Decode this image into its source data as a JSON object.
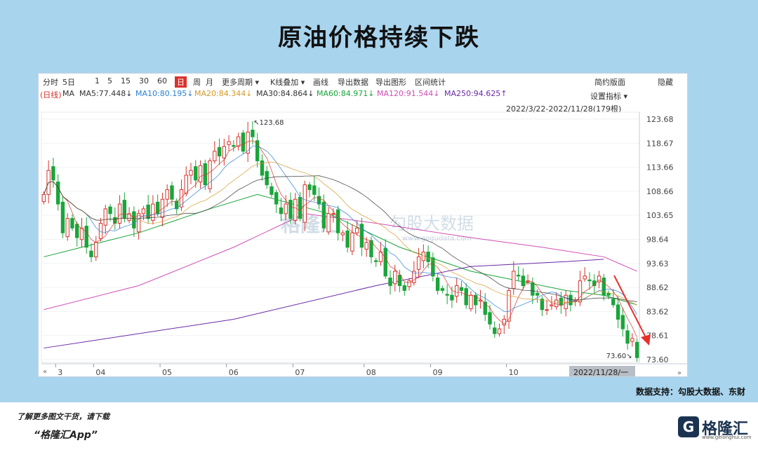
{
  "title": "原油价格持续下跌",
  "toolbar": {
    "items": [
      "分时",
      "5日",
      "1",
      "5",
      "15",
      "30",
      "60",
      "日",
      "周",
      "月",
      "更多周期 ▾",
      "K线叠加 ▾",
      "画线",
      "导出数据",
      "导出图形",
      "区间统计"
    ],
    "selected": "日",
    "right_items": [
      "简约版面",
      "隐藏"
    ],
    "indicator_label": "设置指标 ▾"
  },
  "ma_legend": [
    {
      "text": "(日线)",
      "color": "#d8332c"
    },
    {
      "text": "MA",
      "color": "#333333"
    },
    {
      "text": "MA5:77.448↓",
      "color": "#333333"
    },
    {
      "text": "MA10:80.195↓",
      "color": "#2a7fd4"
    },
    {
      "text": "MA20:84.344↓",
      "color": "#d49a2a"
    },
    {
      "text": "MA30:84.864↓",
      "color": "#333333"
    },
    {
      "text": "MA60:84.971↓",
      "color": "#1aa53a"
    },
    {
      "text": "MA120:91.544↓",
      "color": "#d04fb4"
    },
    {
      "text": "MA250:94.625↑",
      "color": "#6a2aa8"
    }
  ],
  "date_range": "2022/3/22-2022/11/28(179根)",
  "watermark": {
    "main": "格隆汇",
    "secondary": "勾股大数据",
    "url": "www.gogudata.com"
  },
  "chart_data": {
    "type": "candlestick",
    "title": "原油价格持续下跌",
    "y_ticks": [
      123.68,
      118.67,
      113.66,
      108.66,
      103.65,
      98.64,
      93.63,
      88.62,
      83.62,
      78.61,
      73.6
    ],
    "ylim": [
      73.6,
      123.68
    ],
    "x_ticks": [
      "3",
      "04",
      "05",
      "06",
      "07",
      "08",
      "09",
      "10"
    ],
    "x_tick_positions": [
      2.5,
      10.5,
      24.5,
      38.5,
      52.5,
      67.5,
      81.5,
      97.5
    ],
    "last_date_label": "2022/11/28/一",
    "annotations": [
      {
        "label": "123.68",
        "type": "max"
      },
      {
        "label": "73.60",
        "type": "min"
      }
    ],
    "closes": [
      108,
      113,
      111,
      106,
      100,
      103,
      101,
      99,
      101,
      97,
      95,
      98,
      102,
      105,
      104,
      102,
      106,
      103,
      104,
      101,
      104,
      105,
      103,
      106,
      104,
      107,
      109,
      107,
      105,
      109,
      112,
      113,
      111,
      114,
      110,
      115,
      117,
      116,
      118,
      119,
      118,
      120,
      117,
      121,
      120,
      115,
      112,
      110,
      108,
      106,
      104,
      106,
      103,
      107,
      103,
      110,
      109,
      108,
      106,
      101,
      104,
      104,
      100,
      100,
      97,
      100,
      101,
      97,
      98,
      95,
      94,
      96,
      91,
      89,
      92,
      89,
      88,
      90,
      92,
      95,
      96,
      94,
      91,
      88,
      88,
      87,
      86,
      89,
      88,
      85,
      87,
      85,
      86,
      83,
      81,
      79,
      80,
      82,
      88,
      92,
      91,
      89,
      90,
      87,
      87,
      84,
      84,
      85,
      86,
      85,
      87,
      85,
      86,
      90,
      91,
      90,
      89,
      91,
      87,
      87,
      85,
      82,
      80,
      77,
      78,
      74
    ],
    "ma": [
      {
        "name": "MA5",
        "color": "#d8332c"
      },
      {
        "name": "MA10",
        "color": "#2a7fd4"
      },
      {
        "name": "MA20",
        "color": "#d49a2a"
      },
      {
        "name": "MA30",
        "color": "#333333"
      },
      {
        "name": "MA60",
        "color": "#1aa53a"
      },
      {
        "name": "MA120",
        "color": "#d04fb4"
      },
      {
        "name": "MA250",
        "color": "#6a2aa8"
      }
    ],
    "ma_long": {
      "MA60": [
        [
          0,
          95
        ],
        [
          20,
          100
        ],
        [
          35,
          105
        ],
        [
          45,
          108
        ],
        [
          60,
          104
        ],
        [
          75,
          97
        ],
        [
          90,
          92
        ],
        [
          100,
          90
        ],
        [
          110,
          88
        ],
        [
          118,
          87
        ],
        [
          125,
          85
        ]
      ],
      "MA120": [
        [
          0,
          84
        ],
        [
          20,
          89
        ],
        [
          40,
          97
        ],
        [
          55,
          104
        ],
        [
          70,
          102
        ],
        [
          90,
          99
        ],
        [
          105,
          97
        ],
        [
          118,
          95
        ],
        [
          125,
          92
        ]
      ],
      "MA250": [
        [
          0,
          76
        ],
        [
          40,
          82
        ],
        [
          70,
          89
        ],
        [
          90,
          93
        ],
        [
          110,
          94
        ],
        [
          118,
          94.5
        ]
      ]
    },
    "up_color": "#d8332c",
    "down_color": "#1aa53a",
    "trend_arrow": "down"
  },
  "source": "数据支持：勾股大数据、东财",
  "footer": {
    "line1": "了解更多图文干货，请下载",
    "line2": "“格隆汇App”",
    "logo_text": "格隆汇",
    "logo_sub": "www.gelonghui.com"
  }
}
